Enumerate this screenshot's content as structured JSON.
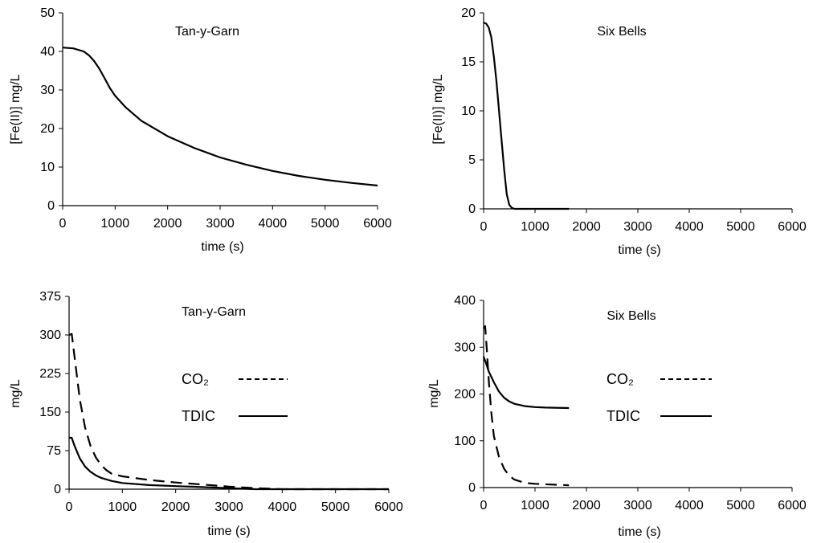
{
  "chart_data": [
    {
      "type": "line",
      "title": "Tan-y-Garn",
      "xlabel": "time (s)",
      "ylabel": "[Fe(II)] mg/L",
      "xlim": [
        0,
        6000
      ],
      "ylim": [
        0,
        50
      ],
      "xticks": [
        "0",
        "1000",
        "2000",
        "3000",
        "4000",
        "5000",
        "6000"
      ],
      "yticks": [
        "0",
        "10",
        "20",
        "30",
        "40",
        "50"
      ],
      "grid": false,
      "series": [
        {
          "style": "solid",
          "x": [
            0,
            200,
            400,
            500,
            600,
            700,
            800,
            900,
            1000,
            1200,
            1500,
            2000,
            2500,
            3000,
            3500,
            4000,
            4500,
            5000,
            5500,
            6000
          ],
          "y": [
            41,
            40.8,
            40,
            39,
            37.5,
            35.5,
            33,
            30.5,
            28.5,
            25.5,
            22,
            18,
            15,
            12.5,
            10.6,
            9,
            7.7,
            6.7,
            5.9,
            5.2
          ]
        }
      ]
    },
    {
      "type": "line",
      "title": "Six Bells",
      "xlabel": "time (s)",
      "ylabel": "[Fe(II)] mg/L",
      "xlim": [
        0,
        6000
      ],
      "ylim": [
        0,
        20
      ],
      "xticks": [
        "0",
        "1000",
        "2000",
        "3000",
        "4000",
        "5000",
        "6000"
      ],
      "yticks": [
        "0",
        "5",
        "10",
        "15",
        "20"
      ],
      "grid": false,
      "series": [
        {
          "style": "solid",
          "x": [
            0,
            50,
            100,
            150,
            200,
            250,
            300,
            350,
            400,
            450,
            500,
            550,
            600,
            700,
            1000,
            1660
          ],
          "y": [
            19,
            18.9,
            18.5,
            17.5,
            15.5,
            13,
            10,
            7,
            4,
            1.5,
            0.4,
            0.1,
            0,
            0,
            0,
            0
          ]
        }
      ]
    },
    {
      "type": "line",
      "title": "Tan-y-Garn",
      "xlabel": "time (s)",
      "ylabel": "mg/L",
      "xlim": [
        0,
        6000
      ],
      "ylim": [
        0,
        375
      ],
      "xticks": [
        "0",
        "1000",
        "2000",
        "3000",
        "4000",
        "5000",
        "6000"
      ],
      "yticks": [
        "0",
        "75",
        "150",
        "225",
        "300",
        "375"
      ],
      "grid": false,
      "legend": "center",
      "series": [
        {
          "name": "CO₂",
          "style": "dashed",
          "x": [
            0,
            50,
            100,
            200,
            300,
            400,
            500,
            600,
            700,
            800,
            1000,
            1500,
            2000,
            2500,
            3000,
            3500,
            4000,
            5000,
            6000
          ],
          "y": [
            300,
            302,
            260,
            175,
            120,
            85,
            62,
            47,
            37,
            30,
            25,
            18,
            13,
            9,
            5,
            2,
            0,
            0,
            0
          ]
        },
        {
          "name": "TDIC",
          "style": "solid",
          "x": [
            0,
            50,
            100,
            200,
            300,
            400,
            500,
            600,
            800,
            1000,
            1500,
            2000,
            2500,
            3000,
            3500,
            4000,
            5000,
            6000
          ],
          "y": [
            100,
            100,
            85,
            60,
            44,
            34,
            27,
            22,
            16,
            12,
            8,
            6,
            4,
            2,
            0,
            0,
            0,
            0
          ]
        }
      ]
    },
    {
      "type": "line",
      "title": "Six Bells",
      "xlabel": "time (s)",
      "ylabel": "mg/L",
      "xlim": [
        0,
        6000
      ],
      "ylim": [
        0,
        400
      ],
      "xticks": [
        "0",
        "1000",
        "2000",
        "3000",
        "4000",
        "5000",
        "6000"
      ],
      "yticks": [
        "0",
        "100",
        "200",
        "300",
        "400"
      ],
      "grid": false,
      "legend": "center",
      "series": [
        {
          "name": "CO₂",
          "style": "dashed",
          "x": [
            0,
            30,
            60,
            100,
            150,
            200,
            300,
            400,
            500,
            600,
            800,
            1000,
            1200,
            1660
          ],
          "y": [
            340,
            345,
            300,
            230,
            160,
            110,
            65,
            40,
            25,
            17,
            10,
            8,
            7,
            5
          ]
        },
        {
          "name": "TDIC",
          "style": "solid",
          "x": [
            0,
            50,
            100,
            200,
            300,
            400,
            500,
            600,
            800,
            1000,
            1200,
            1660
          ],
          "y": [
            280,
            265,
            248,
            225,
            205,
            192,
            184,
            179,
            174,
            172,
            171,
            170
          ]
        }
      ]
    }
  ]
}
